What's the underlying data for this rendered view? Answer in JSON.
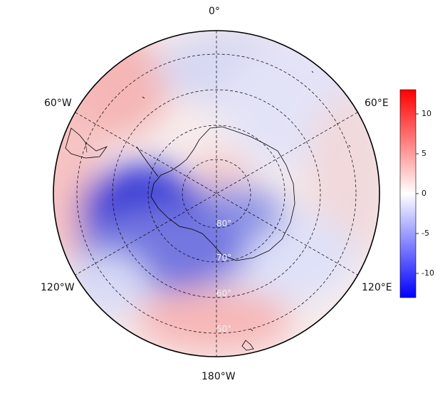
{
  "map": {
    "projection": "south-polar-stereographic",
    "longitude_labels": {
      "top": "0°",
      "upper_left": "60°W",
      "upper_right": "60°E",
      "lower_left": "120°W",
      "lower_right": "120°E",
      "bottom": "180°W"
    },
    "latitude_labels": [
      "80°",
      "70°",
      "60°",
      "50°"
    ],
    "graticule": "dashed",
    "colormap": [
      "#0000ff",
      "#ffffff",
      "#ff0000"
    ]
  },
  "colorbar": {
    "min": -13,
    "max": 13,
    "ticks": [
      "10",
      "5",
      "0",
      "-5",
      "-10"
    ]
  }
}
